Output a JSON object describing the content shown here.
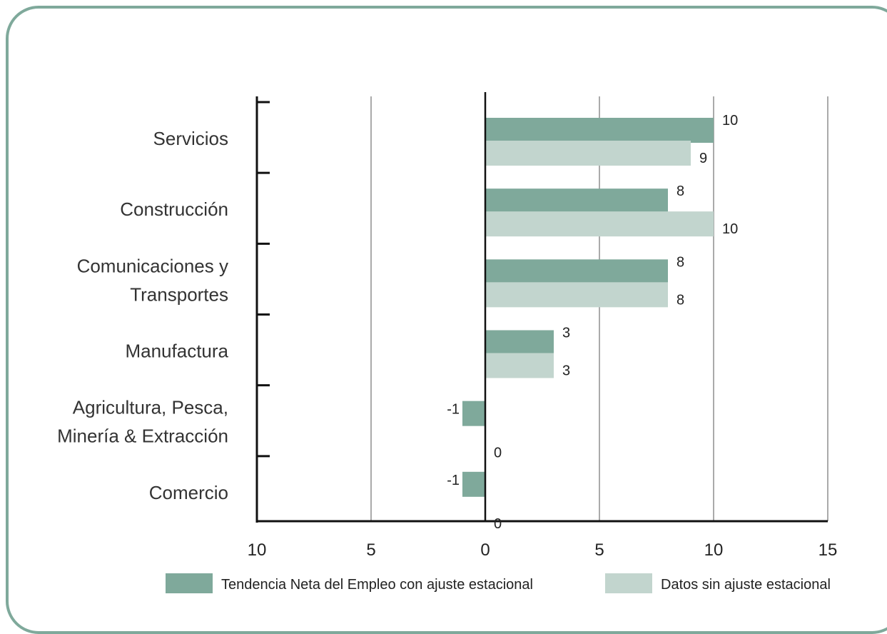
{
  "chart_data": {
    "type": "bar",
    "orientation": "horizontal",
    "categories": [
      [
        "Servicios"
      ],
      [
        "Construcción"
      ],
      [
        "Comunicaciones y",
        "Transportes"
      ],
      [
        "Manufactura"
      ],
      [
        "Agricultura, Pesca,",
        "Minería & Extracción"
      ],
      [
        "Comercio"
      ]
    ],
    "series": [
      {
        "name": "Tendencia Neta del Empleo con ajuste estacional",
        "color": "#7fa99b",
        "values": [
          10,
          8,
          8,
          3,
          -1,
          -1
        ],
        "labels": [
          "10",
          "8",
          "8",
          "3",
          "-1",
          "-1"
        ]
      },
      {
        "name": "Datos sin ajuste estacional",
        "color": "#c2d5ce",
        "values": [
          9,
          10,
          8,
          3,
          0,
          0
        ],
        "labels": [
          "9",
          "10",
          "8",
          "3",
          "0",
          "0"
        ]
      }
    ],
    "xlim": [
      -10,
      15
    ],
    "xticks": [
      -10,
      -5,
      0,
      5,
      10,
      15
    ],
    "xtick_labels": [
      "10",
      "5",
      "0",
      "5",
      "10",
      "15"
    ],
    "grid": true,
    "legend": "bottom"
  }
}
